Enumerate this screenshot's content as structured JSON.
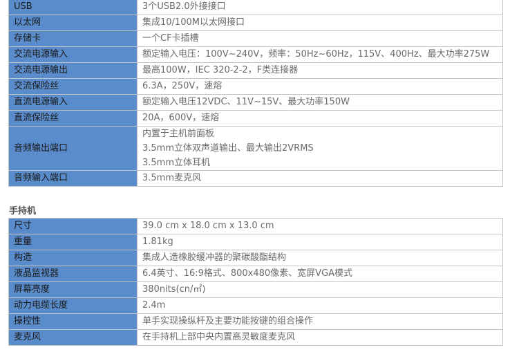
{
  "table1": [
    {
      "k": "USB",
      "v": [
        "3个USB2.0外接接口"
      ]
    },
    {
      "k": "以太网",
      "v": [
        "集成10/100M以太网接口"
      ]
    },
    {
      "k": "存储卡",
      "v": [
        "一个CF卡插槽"
      ]
    },
    {
      "k": "交流电源输入",
      "v": [
        "额定输入电压：100V~240V，频率：50Hz~60Hz，115V、400Hz、最大功率275W"
      ]
    },
    {
      "k": "交流电源输出",
      "v": [
        "最高100W，IEC 320-2-2，F类连接器"
      ]
    },
    {
      "k": "交流保险丝",
      "v": [
        "6.3A，250V，速熔"
      ]
    },
    {
      "k": "直流电源输入",
      "v": [
        "额定输入电压12VDC、11V~15V、最大功率150W"
      ]
    },
    {
      "k": "直流保险丝",
      "v": [
        "20A，600V，速熔"
      ]
    },
    {
      "k": "音频输出端口",
      "v": [
        "内置于主机前面板",
        "3.5mm立体双声道输出、最大输出2VRMS",
        "3.5mm立体耳机"
      ]
    },
    {
      "k": "音频输入端口",
      "v": [
        "3.5mm麦克风"
      ]
    }
  ],
  "section2_title": "手持机",
  "table2": [
    {
      "k": "尺寸",
      "v": [
        "39.0 cm x 18.0 cm x 13.0 cm"
      ]
    },
    {
      "k": "重量",
      "v": [
        "1.81kg"
      ]
    },
    {
      "k": "构造",
      "v": [
        "集成人造橡胶缓冲器的聚碳酸酯结构"
      ]
    },
    {
      "k": "液晶监视器",
      "v": [
        "6.4英寸、16:9格式、800x480像素、宽屏VGA模式"
      ]
    },
    {
      "k": "屏幕亮度",
      "v": [
        "380nits(cn/㎡)"
      ]
    },
    {
      "k": "动力电缆长度",
      "v": [
        "2.4m"
      ]
    },
    {
      "k": "操控性",
      "v": [
        "单手实现操纵杆及主要功能按键的组合操作"
      ]
    },
    {
      "k": "麦克风",
      "v": [
        "在手持机上部中央内置高灵敏度麦克风"
      ]
    }
  ],
  "colors": {
    "label_bg": "#5a8ccb",
    "border": "#c4c4c4",
    "value_text": "#6a6a6a"
  }
}
